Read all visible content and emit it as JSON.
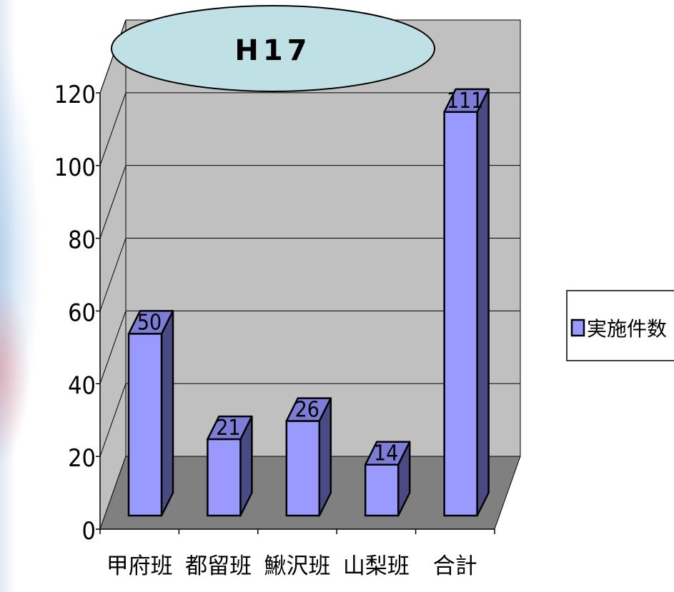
{
  "chart_data": {
    "type": "bar",
    "title": "H17",
    "categories": [
      "甲府班",
      "都留班",
      "鰍沢班",
      "山梨班",
      "合計"
    ],
    "series": [
      {
        "name": "実施件数",
        "values": [
          50,
          21,
          26,
          14,
          111
        ]
      }
    ],
    "data_labels": [
      "50",
      "21",
      "26",
      "14",
      "111"
    ],
    "ylim": [
      0,
      120
    ],
    "y_ticks": [
      "0",
      "20",
      "40",
      "60",
      "80",
      "100",
      "120"
    ],
    "grid": true,
    "legend_position": "right",
    "three_d": true,
    "colors": {
      "bar_front": "#9999ff",
      "bar_side": "#4a4a85",
      "bar_top": "#7d7dd8",
      "wall": "#c0c0c0",
      "floor": "#808080",
      "title_fill": "#bfe0e4"
    }
  }
}
